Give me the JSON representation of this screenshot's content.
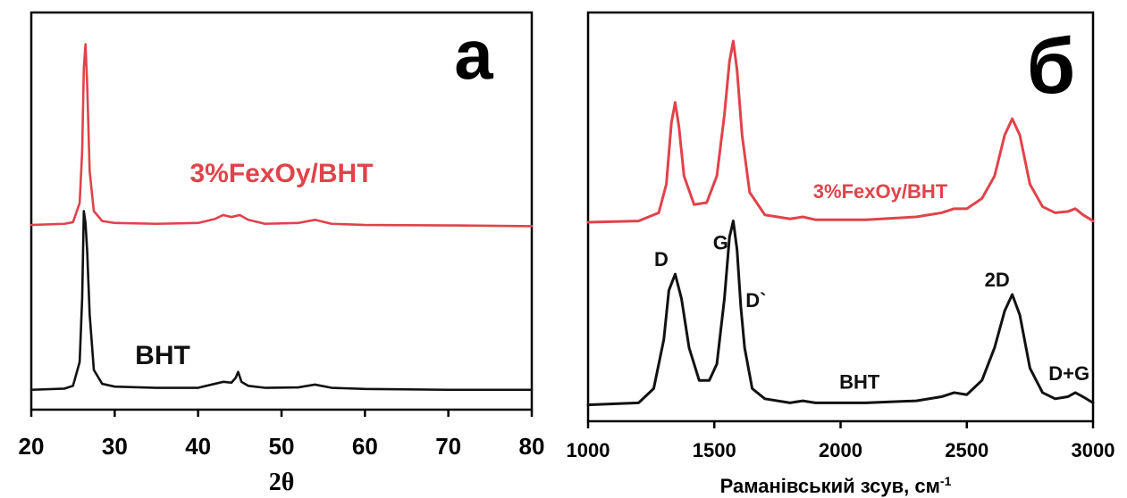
{
  "colors": {
    "modified": "#e0434b",
    "pristine": "#111111",
    "frame": "#000000"
  },
  "chart_data": [
    {
      "type": "line",
      "panel_letter": "а",
      "xlabel": "2θ",
      "ylabel": "",
      "xlim": [
        20,
        80
      ],
      "xticks": [
        20,
        30,
        40,
        50,
        60,
        70,
        80
      ],
      "ylim": [
        0,
        1
      ],
      "grid": false,
      "series": [
        {
          "name": "3%FexOy/ВНТ",
          "color": "#e0434b",
          "x": [
            20,
            24,
            25,
            25.8,
            26.1,
            26.3,
            26.5,
            26.7,
            27.0,
            27.5,
            28.5,
            30,
            35,
            40,
            42,
            43,
            44,
            45,
            46,
            48,
            52,
            54,
            56,
            60,
            70,
            80
          ],
          "y": [
            0.465,
            0.468,
            0.472,
            0.52,
            0.65,
            0.86,
            0.92,
            0.82,
            0.6,
            0.5,
            0.475,
            0.47,
            0.468,
            0.47,
            0.48,
            0.49,
            0.485,
            0.49,
            0.478,
            0.468,
            0.47,
            0.478,
            0.468,
            0.465,
            0.464,
            0.462
          ]
        },
        {
          "name": "ВНТ",
          "color": "#111111",
          "x": [
            20,
            24,
            25,
            25.8,
            26.1,
            26.3,
            26.5,
            26.7,
            27.0,
            27.5,
            28.5,
            30,
            35,
            40,
            42,
            43,
            44,
            44.5,
            44.8,
            45.2,
            46,
            48,
            52,
            54,
            56,
            60,
            70,
            80
          ],
          "y": [
            0.05,
            0.053,
            0.06,
            0.12,
            0.28,
            0.5,
            0.47,
            0.4,
            0.24,
            0.1,
            0.065,
            0.058,
            0.055,
            0.055,
            0.065,
            0.07,
            0.068,
            0.08,
            0.095,
            0.07,
            0.06,
            0.055,
            0.056,
            0.063,
            0.055,
            0.052,
            0.05,
            0.05
          ]
        }
      ]
    },
    {
      "type": "line",
      "panel_letter": "б",
      "xlabel": "Раманівський зсув, см",
      "xlabel_superscript": "-1",
      "ylabel": "",
      "xlim": [
        1000,
        3000
      ],
      "xticks": [
        1000,
        1500,
        2000,
        2500,
        3000
      ],
      "ylim": [
        0,
        1
      ],
      "grid": false,
      "series": [
        {
          "name": "3%FexOy/ВНТ",
          "color": "#e0434b",
          "x": [
            1000,
            1200,
            1280,
            1310,
            1330,
            1345,
            1360,
            1380,
            1420,
            1470,
            1510,
            1540,
            1560,
            1575,
            1590,
            1610,
            1640,
            1700,
            1800,
            1850,
            1900,
            2100,
            2300,
            2400,
            2450,
            2500,
            2560,
            2610,
            2650,
            2680,
            2710,
            2750,
            2800,
            2850,
            2900,
            2930,
            2960,
            3000
          ],
          "y": [
            0.487,
            0.49,
            0.51,
            0.58,
            0.73,
            0.78,
            0.72,
            0.6,
            0.53,
            0.535,
            0.6,
            0.75,
            0.88,
            0.93,
            0.86,
            0.7,
            0.56,
            0.505,
            0.495,
            0.5,
            0.493,
            0.493,
            0.5,
            0.51,
            0.52,
            0.52,
            0.545,
            0.6,
            0.7,
            0.74,
            0.7,
            0.58,
            0.525,
            0.51,
            0.513,
            0.52,
            0.505,
            0.49
          ]
        },
        {
          "name": "ВНТ",
          "color": "#111111",
          "x": [
            1000,
            1200,
            1260,
            1300,
            1320,
            1345,
            1370,
            1400,
            1440,
            1480,
            1510,
            1540,
            1560,
            1575,
            1590,
            1605,
            1620,
            1650,
            1700,
            1800,
            1850,
            1900,
            2100,
            2300,
            2400,
            2450,
            2500,
            2560,
            2610,
            2650,
            2680,
            2710,
            2750,
            2800,
            2850,
            2900,
            2930,
            2960,
            3000
          ],
          "y": [
            0.04,
            0.045,
            0.08,
            0.2,
            0.32,
            0.36,
            0.3,
            0.18,
            0.1,
            0.1,
            0.14,
            0.3,
            0.45,
            0.49,
            0.42,
            0.28,
            0.18,
            0.08,
            0.055,
            0.045,
            0.05,
            0.045,
            0.045,
            0.05,
            0.06,
            0.07,
            0.065,
            0.1,
            0.18,
            0.27,
            0.31,
            0.26,
            0.13,
            0.07,
            0.055,
            0.06,
            0.07,
            0.06,
            0.045
          ]
        }
      ],
      "annotations": [
        {
          "text": "D",
          "x": 1290,
          "y": 0.38
        },
        {
          "text": "G",
          "x": 1525,
          "y": 0.42
        },
        {
          "text": "D`",
          "x": 1665,
          "y": 0.28
        },
        {
          "text": "2D",
          "x": 2620,
          "y": 0.33
        },
        {
          "text": "D+G",
          "x": 2905,
          "y": 0.1
        },
        {
          "text": "ВНТ",
          "x": 2075,
          "y": 0.08
        }
      ]
    }
  ]
}
